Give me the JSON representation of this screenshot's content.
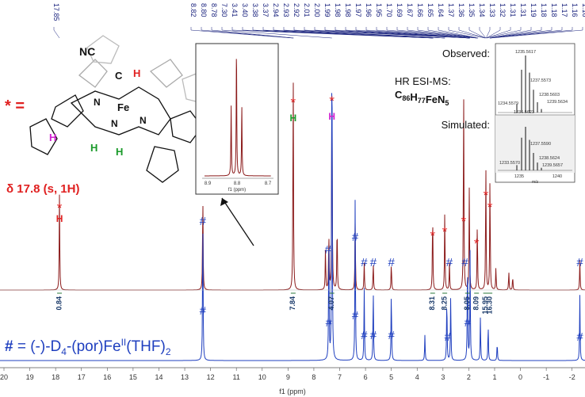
{
  "chart_data": {
    "type": "line",
    "xlabel": "f1 (ppm)",
    "xlim": [
      20,
      -2.5
    ],
    "x_ticks": [
      "20",
      "19",
      "18",
      "17",
      "16",
      "15",
      "14",
      "13",
      "12",
      "11",
      "10",
      "9",
      "8",
      "7",
      "6",
      "5",
      "4",
      "3",
      "2",
      "1",
      "0",
      "-1",
      "-2"
    ],
    "peak_list": [
      "17.85",
      "8.82",
      "8.80",
      "8.78",
      "7.30",
      "3.41",
      "3.40",
      "3.38",
      "3.37",
      "2.94",
      "2.93",
      "2.92",
      "2.01",
      "2.00",
      "1.99",
      "1.98",
      "1.98",
      "1.97",
      "1.96",
      "1.95",
      "1.70",
      "1.69",
      "1.67",
      "1.66",
      "1.65",
      "1.64",
      "1.37",
      "1.36",
      "1.35",
      "1.34",
      "1.33",
      "1.32",
      "1.31",
      "1.31",
      "1.19",
      "1.18",
      "1.18",
      "1.17",
      "1.16",
      "1.16"
    ],
    "series": [
      {
        "color": "#8b1a1a",
        "peaks": [
          {
            "x": 17.85,
            "h": 0.42
          },
          {
            "x": 12.3,
            "h": 0.42
          },
          {
            "x": 8.8,
            "h": 1.0
          },
          {
            "x": 7.55,
            "h": 0.18
          },
          {
            "x": 7.42,
            "h": 0.25
          },
          {
            "x": 7.3,
            "h": 1.0
          },
          {
            "x": 7.1,
            "h": 0.3
          },
          {
            "x": 6.4,
            "h": 0.3
          },
          {
            "x": 6.05,
            "h": 0.12
          },
          {
            "x": 5.7,
            "h": 0.12
          },
          {
            "x": 5.0,
            "h": 0.12
          },
          {
            "x": 3.4,
            "h": 0.35
          },
          {
            "x": 2.93,
            "h": 0.35
          },
          {
            "x": 2.75,
            "h": 0.12
          },
          {
            "x": 2.2,
            "h": 0.9
          },
          {
            "x": 1.98,
            "h": 0.45
          },
          {
            "x": 1.67,
            "h": 0.3
          },
          {
            "x": 1.34,
            "h": 0.55
          },
          {
            "x": 1.18,
            "h": 0.5
          },
          {
            "x": 0.95,
            "h": 0.1
          },
          {
            "x": 0.45,
            "h": 0.08
          },
          {
            "x": 0.3,
            "h": 0.06
          },
          {
            "x": -2.3,
            "h": 0.13
          }
        ]
      },
      {
        "color": "#1f3fbf",
        "peaks": [
          {
            "x": 12.3,
            "h": 0.4
          },
          {
            "x": 7.42,
            "h": 0.35
          },
          {
            "x": 7.3,
            "h": 1.0
          },
          {
            "x": 6.4,
            "h": 0.45
          },
          {
            "x": 6.05,
            "h": 0.2
          },
          {
            "x": 5.7,
            "h": 0.2
          },
          {
            "x": 5.0,
            "h": 0.2
          },
          {
            "x": 3.7,
            "h": 0.07
          },
          {
            "x": 2.85,
            "h": 0.18
          },
          {
            "x": 2.7,
            "h": 0.18
          },
          {
            "x": 2.05,
            "h": 0.3
          },
          {
            "x": 1.95,
            "h": 0.3
          },
          {
            "x": 1.55,
            "h": 0.12
          },
          {
            "x": 1.25,
            "h": 0.1
          },
          {
            "x": 0.9,
            "h": 0.05
          },
          {
            "x": -2.3,
            "h": 0.18
          }
        ]
      }
    ],
    "annotations": {
      "hash_marks": [
        "#",
        "#",
        "#",
        "#",
        "#",
        "#",
        "#",
        "#",
        "#",
        "#",
        "#",
        "#",
        "#",
        "#",
        "#",
        "#",
        "#",
        "#",
        "#",
        "#",
        "#",
        "#",
        "#"
      ],
      "star_marks": [
        "*",
        "*",
        "*",
        "*",
        "*",
        "*",
        "*",
        "*",
        "*"
      ],
      "peak_label_17_8": "H",
      "peak_label_8_8": "H",
      "peak_label_7_3": "H",
      "integrals": [
        "0.84",
        "7.84",
        "4.07",
        "8.31",
        "8.25",
        "8.05",
        "8.09",
        "15.95",
        "16.30"
      ]
    },
    "legend_star": {
      "symbol": "* =",
      "delta": "δ 17.8 (s, 1H)"
    },
    "legend_hash": {
      "symbol": "#",
      "text": " = (-)-D",
      "sub1": "4",
      "text2": "-(por)Fe",
      "sup": "II",
      "text3": "(THF)",
      "sub2": "2"
    },
    "structure_labels": {
      "NC": "NC",
      "C": "C",
      "H": "H",
      "Fe": "Fe",
      "N": "N"
    },
    "inset_zoom": {
      "ticks": [
        "8.9",
        "8.8",
        "8.7"
      ],
      "xlabel": "f1 (ppm)"
    },
    "inset_ms": {
      "observed_label": "Observed:",
      "simulated_label": "Simulated:",
      "method": "HR ESI-MS:",
      "formula_base": "C",
      "formula_parts": [
        [
          "C",
          "86"
        ],
        [
          "H",
          "77"
        ],
        [
          "Fe",
          ""
        ],
        [
          "N",
          "5"
        ]
      ],
      "observed_peaks": [
        "1235.5617",
        "1237.5573",
        "1238.5603",
        "1234.5579",
        "1239.5634",
        "1236.5623"
      ],
      "simulated_peaks": [
        "1237.5590",
        "1233.5570",
        "1238.5624",
        "1239.5657"
      ],
      "ms_ticks": [
        "1235",
        "1240"
      ],
      "ms_xlabel": "m/z"
    },
    "colors": {
      "red_trace": "#8b1a1a",
      "blue_trace": "#1f3fbf",
      "star": "#e02020",
      "hash": "#1f3fbf",
      "h_green": "#1a9a2a",
      "h_magenta": "#d020d0"
    }
  }
}
